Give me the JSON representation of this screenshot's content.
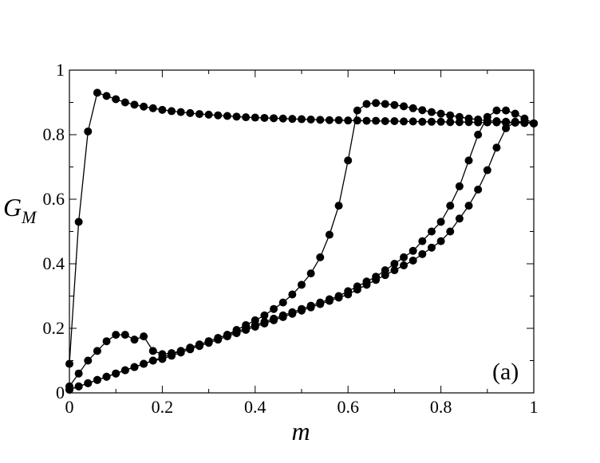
{
  "chart_data": {
    "type": "line",
    "title": "",
    "xlabel": "m",
    "ylabel": {
      "main": "G",
      "sub": "M"
    },
    "panel_label": "(a)",
    "xlim": [
      0,
      1
    ],
    "ylim": [
      0,
      1
    ],
    "x_ticks": [
      "0",
      "0.2",
      "0.4",
      "0.6",
      "0.8",
      "1"
    ],
    "y_ticks": [
      "0",
      "0.2",
      "0.4",
      "0.6",
      "0.8",
      "1"
    ],
    "grid": false,
    "legend": "none",
    "marker": "filled-circle",
    "color": "#000000",
    "series": [
      {
        "x": [
          0,
          0.02,
          0.04,
          0.06,
          0.08,
          0.1,
          0.12,
          0.14,
          0.16,
          0.18,
          0.2,
          0.22,
          0.24,
          0.26,
          0.28,
          0.3,
          0.32,
          0.34,
          0.36,
          0.38,
          0.4,
          0.42,
          0.44,
          0.46,
          0.48,
          0.5,
          0.52,
          0.54,
          0.56,
          0.58,
          0.6,
          0.62,
          0.64,
          0.66,
          0.68,
          0.7,
          0.72,
          0.74,
          0.76,
          0.78,
          0.8,
          0.82,
          0.84,
          0.86,
          0.88,
          0.9,
          0.92,
          0.94,
          0.96,
          0.98,
          1.0
        ],
        "y": [
          0.09,
          0.53,
          0.81,
          0.93,
          0.92,
          0.91,
          0.9,
          0.893,
          0.887,
          0.882,
          0.877,
          0.873,
          0.87,
          0.867,
          0.864,
          0.862,
          0.86,
          0.858,
          0.856,
          0.854,
          0.853,
          0.852,
          0.851,
          0.85,
          0.849,
          0.848,
          0.847,
          0.846,
          0.845,
          0.845,
          0.844,
          0.844,
          0.843,
          0.843,
          0.842,
          0.842,
          0.841,
          0.841,
          0.84,
          0.84,
          0.84,
          0.839,
          0.839,
          0.839,
          0.838,
          0.838,
          0.838,
          0.837,
          0.837,
          0.836,
          0.835
        ]
      },
      {
        "x": [
          0,
          0.02,
          0.04,
          0.06,
          0.08,
          0.1,
          0.12,
          0.14,
          0.16,
          0.18,
          0.2,
          0.22,
          0.24,
          0.26,
          0.28,
          0.3,
          0.32,
          0.34,
          0.36,
          0.38,
          0.4,
          0.42,
          0.44,
          0.46,
          0.48,
          0.5,
          0.52,
          0.54,
          0.56,
          0.58,
          0.6,
          0.62,
          0.64,
          0.66,
          0.68,
          0.7,
          0.72,
          0.74,
          0.76,
          0.78,
          0.8,
          0.82,
          0.84,
          0.86,
          0.88,
          0.9,
          0.92,
          0.94,
          0.96,
          0.98,
          1.0
        ],
        "y": [
          0.02,
          0.06,
          0.1,
          0.13,
          0.16,
          0.18,
          0.18,
          0.165,
          0.175,
          0.13,
          0.12,
          0.123,
          0.13,
          0.14,
          0.15,
          0.16,
          0.17,
          0.18,
          0.195,
          0.21,
          0.225,
          0.24,
          0.26,
          0.28,
          0.305,
          0.335,
          0.37,
          0.42,
          0.49,
          0.58,
          0.72,
          0.875,
          0.895,
          0.898,
          0.895,
          0.892,
          0.888,
          0.882,
          0.876,
          0.87,
          0.865,
          0.86,
          0.855,
          0.85,
          0.847,
          0.843,
          0.842,
          0.84,
          0.838,
          0.837,
          0.835
        ]
      },
      {
        "x": [
          0,
          0.02,
          0.04,
          0.06,
          0.08,
          0.1,
          0.12,
          0.14,
          0.16,
          0.18,
          0.2,
          0.22,
          0.24,
          0.26,
          0.28,
          0.3,
          0.32,
          0.34,
          0.36,
          0.38,
          0.4,
          0.42,
          0.44,
          0.46,
          0.48,
          0.5,
          0.52,
          0.54,
          0.56,
          0.58,
          0.6,
          0.62,
          0.64,
          0.66,
          0.68,
          0.7,
          0.72,
          0.74,
          0.76,
          0.78,
          0.8,
          0.82,
          0.84,
          0.86,
          0.88,
          0.9,
          0.92,
          0.94,
          0.96,
          0.98,
          1.0
        ],
        "y": [
          0.01,
          0.02,
          0.03,
          0.04,
          0.05,
          0.06,
          0.07,
          0.08,
          0.09,
          0.1,
          0.11,
          0.12,
          0.13,
          0.14,
          0.15,
          0.16,
          0.17,
          0.18,
          0.19,
          0.2,
          0.21,
          0.22,
          0.23,
          0.24,
          0.25,
          0.26,
          0.27,
          0.28,
          0.29,
          0.3,
          0.315,
          0.33,
          0.345,
          0.36,
          0.38,
          0.4,
          0.42,
          0.44,
          0.47,
          0.5,
          0.53,
          0.58,
          0.64,
          0.72,
          0.8,
          0.855,
          0.875,
          0.875,
          0.865,
          0.85,
          0.835
        ]
      },
      {
        "x": [
          0,
          0.02,
          0.04,
          0.06,
          0.08,
          0.1,
          0.12,
          0.14,
          0.16,
          0.18,
          0.2,
          0.22,
          0.24,
          0.26,
          0.28,
          0.3,
          0.32,
          0.34,
          0.36,
          0.38,
          0.4,
          0.42,
          0.44,
          0.46,
          0.48,
          0.5,
          0.52,
          0.54,
          0.56,
          0.58,
          0.6,
          0.62,
          0.64,
          0.66,
          0.68,
          0.7,
          0.72,
          0.74,
          0.76,
          0.78,
          0.8,
          0.82,
          0.84,
          0.86,
          0.88,
          0.9,
          0.92,
          0.94,
          0.96,
          0.98,
          1.0
        ],
        "y": [
          0.01,
          0.02,
          0.03,
          0.04,
          0.05,
          0.06,
          0.07,
          0.08,
          0.09,
          0.1,
          0.105,
          0.115,
          0.125,
          0.135,
          0.145,
          0.155,
          0.165,
          0.175,
          0.185,
          0.195,
          0.205,
          0.215,
          0.225,
          0.235,
          0.245,
          0.255,
          0.265,
          0.275,
          0.285,
          0.295,
          0.305,
          0.32,
          0.335,
          0.35,
          0.365,
          0.38,
          0.395,
          0.41,
          0.43,
          0.45,
          0.47,
          0.5,
          0.54,
          0.58,
          0.63,
          0.69,
          0.76,
          0.82,
          0.84,
          0.84,
          0.835
        ]
      }
    ]
  }
}
